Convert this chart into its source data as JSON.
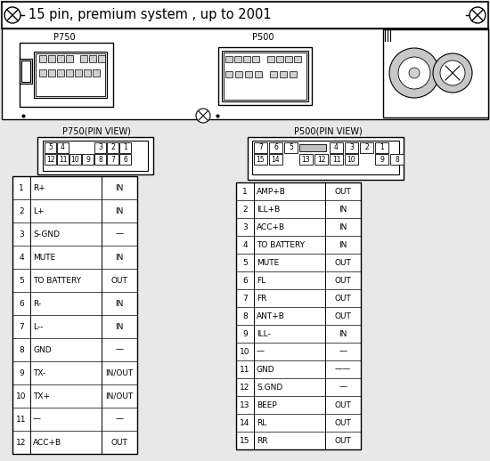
{
  "title": "15 pin, premium system , up to 2001",
  "p750_label": "P750",
  "p500_label": "P500",
  "p750_pin_view": "P750(PIN VIEW)",
  "p500_pin_view": "P500(PIN VIEW)",
  "p750_rows": [
    [
      "1",
      "R+",
      "IN"
    ],
    [
      "2",
      "L+",
      "IN"
    ],
    [
      "3",
      "S-GND",
      "—"
    ],
    [
      "4",
      "MUTE",
      "IN"
    ],
    [
      "5",
      "TO BATTERY",
      "OUT"
    ],
    [
      "6",
      "R-",
      "IN"
    ],
    [
      "7",
      "L--",
      "IN"
    ],
    [
      "8",
      "GND",
      "—"
    ],
    [
      "9",
      "TX-",
      "IN/OUT"
    ],
    [
      "10",
      "TX+",
      "IN/OUT"
    ],
    [
      "11",
      "—",
      "—"
    ],
    [
      "12",
      "ACC+B",
      "OUT"
    ]
  ],
  "p500_rows": [
    [
      "1",
      "AMP+B",
      "OUT"
    ],
    [
      "2",
      "ILL+B",
      "IN"
    ],
    [
      "3",
      "ACC+B",
      "IN"
    ],
    [
      "4",
      "TO BATTERY",
      "IN"
    ],
    [
      "5",
      "MUTE",
      "OUT"
    ],
    [
      "6",
      "FL",
      "OUT"
    ],
    [
      "7",
      "FR",
      "OUT"
    ],
    [
      "8",
      "ANT+B",
      "OUT"
    ],
    [
      "9",
      "ILL-",
      "IN"
    ],
    [
      "10",
      "—",
      "—"
    ],
    [
      "11",
      "GND",
      "——"
    ],
    [
      "12",
      "S.GND",
      "—"
    ],
    [
      "13",
      "BEEP",
      "OUT"
    ],
    [
      "14",
      "RL",
      "OUT"
    ],
    [
      "15",
      "RR",
      "OUT"
    ]
  ],
  "bg_color": "#e8e8e8",
  "border_color": "#000000",
  "font_size_title": 10.5,
  "font_size_table": 6.5,
  "font_size_label": 7,
  "font_size_pin": 5.5
}
